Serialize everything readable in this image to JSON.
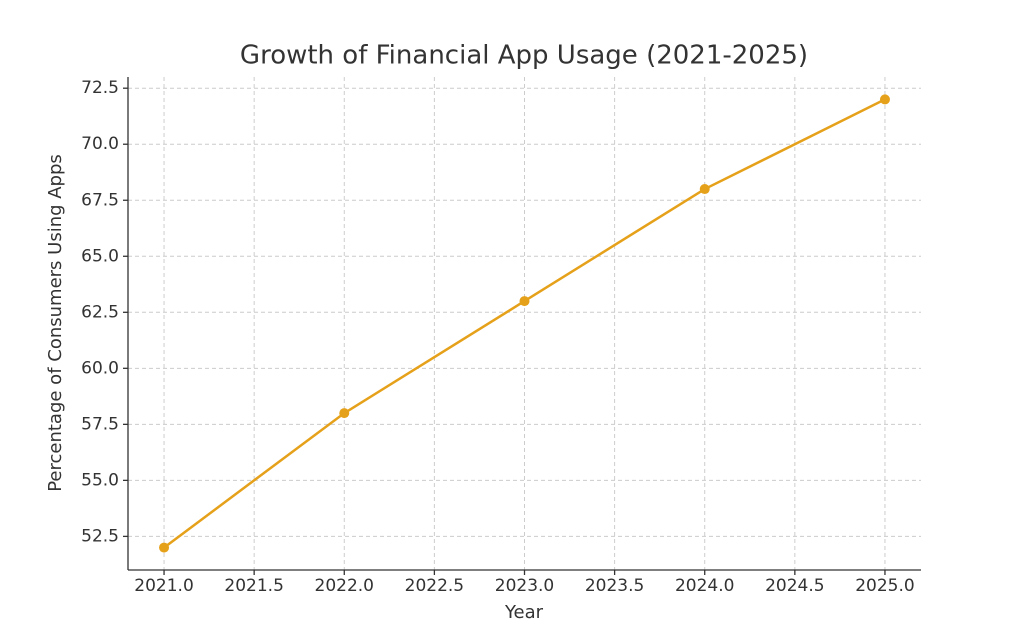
{
  "chart_data": {
    "type": "line",
    "title": "Growth of Financial App Usage (2021-2025)",
    "x_label": "Year",
    "y_label": "Percentage of Consumers Using Apps",
    "x": [
      2021,
      2022,
      2023,
      2024,
      2025
    ],
    "values": [
      52,
      58,
      63,
      68,
      72
    ],
    "color": "#e6a11a",
    "xlim": [
      2020.8,
      2025.2
    ],
    "ylim": [
      51,
      73
    ],
    "xticks": [
      {
        "value": 2021,
        "label": "2021.0"
      },
      {
        "value": 2021.5,
        "label": "2021.5"
      },
      {
        "value": 2022,
        "label": "2022.0"
      },
      {
        "value": 2022.5,
        "label": "2022.5"
      },
      {
        "value": 2023,
        "label": "2023.0"
      },
      {
        "value": 2023.5,
        "label": "2023.5"
      },
      {
        "value": 2024,
        "label": "2024.0"
      },
      {
        "value": 2024.5,
        "label": "2024.5"
      },
      {
        "value": 2025,
        "label": "2025.0"
      }
    ],
    "yticks": [
      52.5,
      {
        "value": 55,
        "label": "55.0"
      },
      57.5,
      {
        "value": 60,
        "label": "60.0"
      },
      62.5,
      {
        "value": 65,
        "label": "65.0"
      },
      67.5,
      {
        "value": 70,
        "label": "70.0"
      },
      72.5
    ],
    "grid": true
  }
}
